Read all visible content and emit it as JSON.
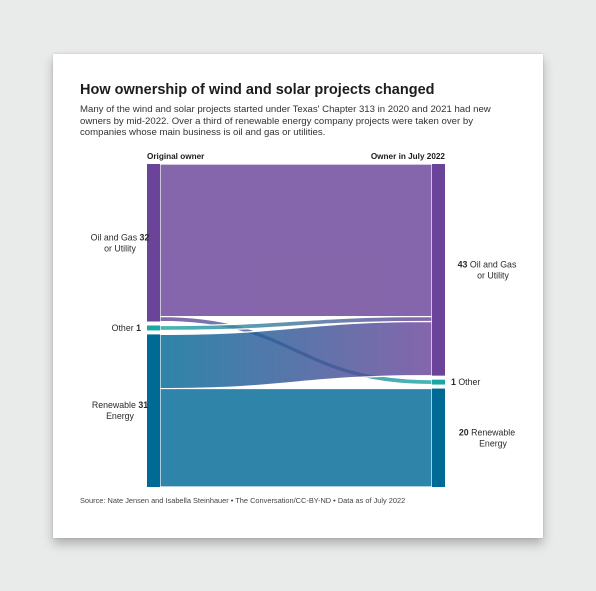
{
  "card": {
    "title": "How ownership of wind and solar projects changed",
    "subtitle": "Many of the wind and solar projects started under Texas' Chapter 313 in 2020 and 2021 had new owners by mid-2022. Over a third of renewable energy company projects were taken over by companies whose main business is oil and gas or utilities.",
    "source": "Source: Nate Jensen and Isabella Steinhauer • The Conversation/CC-BY-ND • Data as of July 2022"
  },
  "chart_data": {
    "type": "sankey",
    "left_header": "Original owner",
    "right_header": "Owner in July 2022",
    "left_nodes": [
      {
        "id": "og_left",
        "label_lines": [
          "Oil and Gas",
          "or Utility"
        ],
        "value": 32,
        "color": "#6a4499"
      },
      {
        "id": "other_left",
        "label_lines": [
          "Other"
        ],
        "value": 1,
        "color": "#1aa7a3"
      },
      {
        "id": "re_left",
        "label_lines": [
          "Renewable",
          "Energy"
        ],
        "value": 31,
        "color": "#006a96"
      }
    ],
    "right_nodes": [
      {
        "id": "og_right",
        "label_lines": [
          "Oil and Gas",
          "or Utility"
        ],
        "value": 43,
        "color": "#6a4499"
      },
      {
        "id": "other_right",
        "label_lines": [
          "Other"
        ],
        "value": 1,
        "color": "#1aa7a3"
      },
      {
        "id": "re_right",
        "label_lines": [
          "Renewable",
          "Energy"
        ],
        "value": 20,
        "color": "#006a96"
      }
    ],
    "flows": [
      {
        "source": "og_left",
        "target": "og_right",
        "value": 31
      },
      {
        "source": "og_left",
        "target": "other_right",
        "value": 1
      },
      {
        "source": "other_left",
        "target": "og_right",
        "value": 1
      },
      {
        "source": "re_left",
        "target": "og_right",
        "value": 11
      },
      {
        "source": "re_left",
        "target": "re_right",
        "value": 20
      }
    ]
  }
}
